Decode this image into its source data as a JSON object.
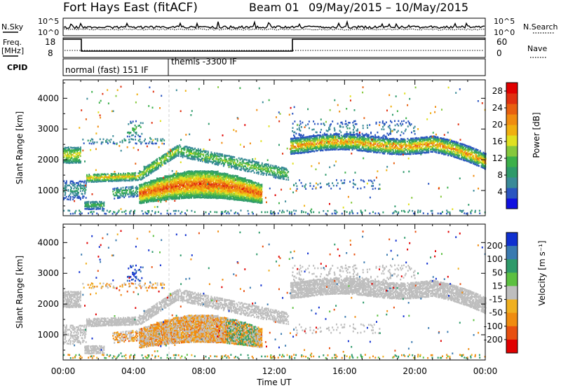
{
  "header": {
    "title": "Fort Hays East (fitACF)",
    "beam_label": "Beam 01",
    "date_range": "09/May/2015 – 10/May/2015"
  },
  "noise_panel": {
    "left_label": "N.Sky",
    "right_label": "N.Search",
    "left_ticks": [
      "10^5",
      "10^0"
    ],
    "right_ticks": [
      "10^5",
      "10^0"
    ]
  },
  "freq_panel": {
    "left_label_line1": "Freq.",
    "left_label_line2": "[MHz]",
    "right_label": "Nave",
    "left_ticks": [
      "18",
      "8"
    ],
    "right_ticks": [
      "60",
      "0"
    ]
  },
  "cpid_panel": {
    "label": "CPID",
    "segments": [
      "normal (fast) 151 IF",
      "themis -3300 IF"
    ]
  },
  "chart_data": [
    {
      "type": "heatmap",
      "name": "power",
      "title": "",
      "xlabel": "",
      "ylabel": "Slant Range [km]",
      "yticks": [
        1000,
        2000,
        3000,
        4000
      ],
      "ylim": [
        180,
        4600
      ],
      "colorbar_label": "Power [dB]",
      "colorbar_ticks": [
        4,
        8,
        12,
        16,
        20,
        24,
        28
      ],
      "colorbar_range": [
        0,
        30
      ],
      "colors": [
        "#1010e0",
        "#2a55c0",
        "#3a8a98",
        "#2e9a6a",
        "#3cb04a",
        "#86c83c",
        "#e0e020",
        "#f0b010",
        "#f08c10",
        "#e86010",
        "#e03010",
        "#e00000"
      ]
    },
    {
      "type": "heatmap",
      "name": "velocity",
      "title": "",
      "xlabel": "Time UT",
      "ylabel": "Slant Range [km]",
      "xticks": [
        "00:00",
        "04:00",
        "08:00",
        "12:00",
        "16:00",
        "20:00",
        "00:00"
      ],
      "yticks": [
        1000,
        2000,
        3000,
        4000
      ],
      "ylim": [
        180,
        4600
      ],
      "colorbar_label": "Velocity [m s⁻¹]",
      "colorbar_ticks": [
        "200",
        "100",
        "50",
        "15",
        "-15",
        "-50",
        "-100",
        "-200"
      ],
      "colors": [
        "#1030d0",
        "#3a7ab0",
        "#2e9a6a",
        "#5cc040",
        "#bebebe",
        "#f0b020",
        "#f08c10",
        "#e85010",
        "#e00000"
      ]
    }
  ]
}
